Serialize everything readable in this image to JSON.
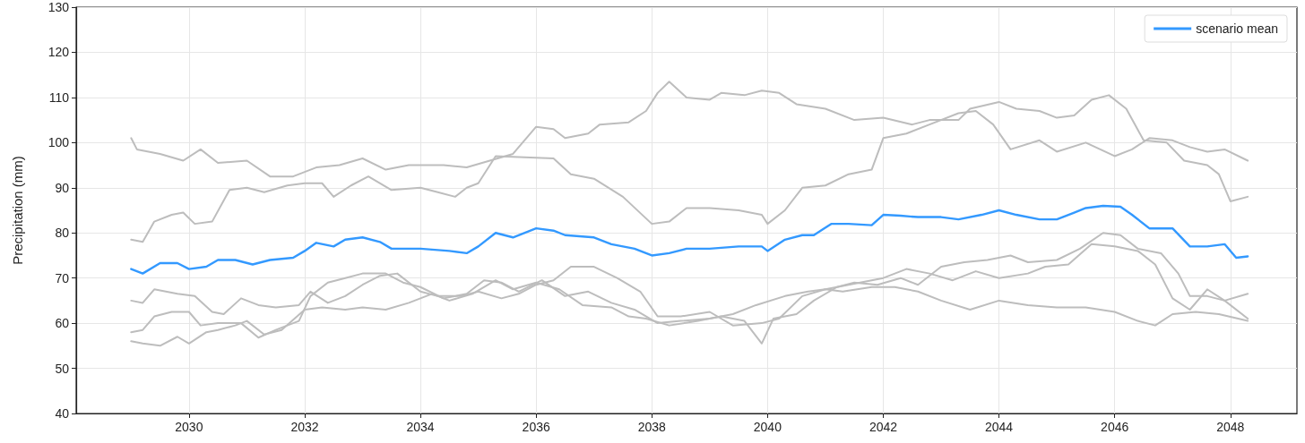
{
  "chart_data": {
    "type": "line",
    "ylabel": "Precipitation (mm)",
    "xlim": [
      2028.05,
      2049.15
    ],
    "xticks": [
      2030,
      2032,
      2034,
      2036,
      2038,
      2040,
      2042,
      2044,
      2046,
      2048
    ],
    "ylim": [
      40,
      130
    ],
    "yticks": [
      40,
      50,
      60,
      70,
      80,
      90,
      100,
      110,
      120,
      130
    ],
    "grid": true,
    "legend": "top right",
    "marker": "none",
    "line_style": "solid",
    "series": [
      {
        "color": "#bdbdbd",
        "x": [
          2029,
          2029.1,
          2029.5,
          2029.9,
          2030.2,
          2030.5,
          2031,
          2031.4,
          2031.8,
          2032.2,
          2032.6,
          2033,
          2033.4,
          2033.8,
          2034.4,
          2034.8,
          2035.2,
          2035.6,
          2036,
          2036.3,
          2036.5,
          2036.9,
          2037.1,
          2037.6,
          2037.9,
          2038.1,
          2038.3,
          2038.6,
          2039,
          2039.2,
          2039.6,
          2039.9,
          2040.2,
          2040.5,
          2041,
          2041.5,
          2042,
          2042.5,
          2042.8,
          2043.3,
          2043.5,
          2044,
          2044.3,
          2044.7,
          2045,
          2045.3,
          2045.6,
          2045.9,
          2046.2,
          2046.5,
          2046.9,
          2047.2,
          2047.6,
          2047.8,
          2048,
          2048.3
        ],
        "values": [
          101,
          98.5,
          97.5,
          96,
          98.5,
          95.5,
          96,
          92.5,
          92.5,
          94.5,
          95,
          96.5,
          94,
          95,
          95,
          94.5,
          96,
          97.5,
          103.5,
          103,
          101,
          102,
          104,
          104.5,
          107,
          111,
          113.5,
          110,
          109.5,
          111,
          110.5,
          111.5,
          111,
          108.5,
          107.5,
          105,
          105.5,
          104,
          105,
          105,
          107.5,
          109,
          107.5,
          107,
          105.5,
          106,
          109.5,
          110.5,
          107.5,
          100.5,
          100,
          96,
          95,
          93,
          87,
          88
        ]
      },
      {
        "color": "#bdbdbd",
        "x": [
          2029,
          2029.2,
          2029.4,
          2029.7,
          2029.9,
          2030.1,
          2030.4,
          2030.7,
          2031,
          2031.3,
          2031.7,
          2032,
          2032.3,
          2032.5,
          2032.8,
          2033.1,
          2033.5,
          2034,
          2034.3,
          2034.6,
          2034.8,
          2035,
          2035.3,
          2036.3,
          2036.6,
          2037,
          2037.5,
          2038,
          2038.3,
          2038.6,
          2039,
          2039.5,
          2039.9,
          2040,
          2040.3,
          2040.6,
          2041,
          2041.4,
          2041.8,
          2042,
          2042.4,
          2042.8,
          2043.3,
          2043.6,
          2043.9,
          2044.2,
          2044.7,
          2045,
          2045.5,
          2046,
          2046.3,
          2046.6,
          2047,
          2047.3,
          2047.6,
          2047.9,
          2048.3
        ],
        "values": [
          78.5,
          78,
          82.5,
          84,
          84.5,
          82,
          82.5,
          89.5,
          90,
          89,
          90.5,
          91,
          91,
          88,
          90.5,
          92.5,
          89.5,
          90,
          89,
          88,
          90,
          91,
          97,
          96.5,
          93,
          92,
          88,
          82,
          82.5,
          85.5,
          85.5,
          85,
          84,
          82,
          85,
          90,
          90.5,
          93,
          94,
          101,
          102,
          104,
          106.5,
          107,
          104,
          98.5,
          100.5,
          98,
          100,
          97,
          98.5,
          101,
          100.5,
          99,
          98,
          98.5,
          96
        ]
      },
      {
        "color": "#bdbdbd",
        "x": [
          2029,
          2029.2,
          2029.4,
          2029.8,
          2030.1,
          2030.4,
          2030.6,
          2030.9,
          2031.2,
          2031.5,
          2031.9,
          2032.1,
          2032.4,
          2032.7,
          2033,
          2033.3,
          2033.6,
          2034,
          2034.3,
          2034.7,
          2035,
          2035.4,
          2035.7,
          2036,
          2036.3,
          2036.6,
          2037,
          2037.4,
          2037.8,
          2038.1,
          2038.5,
          2039,
          2039.4,
          2039.9,
          2040.2,
          2040.6,
          2041,
          2041.4,
          2042,
          2042.4,
          2042.8,
          2043.2,
          2043.6,
          2044,
          2044.5,
          2044.8,
          2045.2,
          2045.6,
          2046,
          2046.4,
          2046.7,
          2047,
          2047.3,
          2047.6,
          2047.9,
          2048.3
        ],
        "values": [
          65,
          64.5,
          67.5,
          66.5,
          66,
          62.5,
          62,
          65.5,
          64,
          63.5,
          64,
          67,
          64.5,
          66,
          68.5,
          70.5,
          71,
          67,
          66,
          66,
          67,
          65.5,
          66.5,
          68.5,
          69.5,
          72.5,
          72.5,
          70,
          67,
          61.5,
          61.5,
          62.5,
          59.5,
          60,
          61,
          66,
          67.5,
          68.5,
          70,
          72,
          71,
          69.5,
          71.5,
          70,
          71,
          72.5,
          73,
          77.5,
          77,
          76,
          73,
          65.5,
          63,
          67.5,
          65,
          66.5
        ]
      },
      {
        "color": "#bdbdbd",
        "x": [
          2029,
          2029.2,
          2029.4,
          2029.7,
          2030,
          2030.2,
          2030.5,
          2030.9,
          2031.2,
          2031.5,
          2031.9,
          2032.1,
          2032.4,
          2032.7,
          2033,
          2033.4,
          2033.7,
          2034,
          2034.4,
          2034.8,
          2035.1,
          2035.4,
          2035.7,
          2036.1,
          2036.5,
          2036.9,
          2037.3,
          2037.7,
          2038.1,
          2038.5,
          2039,
          2039.4,
          2039.8,
          2040.3,
          2040.7,
          2041,
          2041.3,
          2041.8,
          2042.2,
          2042.6,
          2043,
          2043.5,
          2044,
          2044.5,
          2045,
          2045.5,
          2046,
          2046.4,
          2046.7,
          2047,
          2047.4,
          2047.8,
          2048.3
        ],
        "values": [
          58,
          58.5,
          61.5,
          62.5,
          62.5,
          59.5,
          60,
          60,
          56.8,
          58.5,
          60.5,
          66,
          69,
          70,
          71,
          71,
          69,
          68,
          65.5,
          66.5,
          69.5,
          69,
          67,
          69.5,
          66,
          67,
          64.5,
          63,
          60,
          60.5,
          61,
          62,
          64,
          66,
          67,
          67.5,
          67,
          68,
          68,
          67,
          65,
          63,
          65,
          64,
          63.5,
          63.5,
          62.5,
          60.5,
          59.5,
          62,
          62.5,
          62,
          60.5
        ]
      },
      {
        "color": "#bdbdbd",
        "x": [
          2029,
          2029.2,
          2029.5,
          2029.8,
          2030,
          2030.3,
          2030.5,
          2030.8,
          2031,
          2031.3,
          2031.6,
          2032,
          2032.3,
          2032.7,
          2033,
          2033.4,
          2033.8,
          2034.2,
          2034.5,
          2034.9,
          2035.3,
          2035.6,
          2036,
          2036.4,
          2036.8,
          2037.3,
          2037.6,
          2037.9,
          2038.3,
          2038.8,
          2039.2,
          2039.6,
          2039.9,
          2040.1,
          2040.5,
          2040.8,
          2041.2,
          2041.5,
          2041.9,
          2042.3,
          2042.6,
          2043,
          2043.4,
          2043.8,
          2044.2,
          2044.5,
          2045,
          2045.4,
          2045.8,
          2046.1,
          2046.4,
          2046.8,
          2047.1,
          2047.3,
          2047.6,
          2047.9,
          2048.3
        ],
        "values": [
          56,
          55.5,
          55,
          57,
          55.5,
          58,
          58.5,
          59.5,
          60.5,
          57.5,
          58.5,
          63,
          63.5,
          63,
          63.5,
          63,
          64.5,
          66.5,
          65,
          66.5,
          69.5,
          67.5,
          69,
          67.5,
          64,
          63.5,
          61.5,
          61,
          59.5,
          60.5,
          61.5,
          60.5,
          55.5,
          61,
          62,
          65,
          68,
          69,
          68.5,
          70,
          68.5,
          72.5,
          73.5,
          74,
          75,
          73.5,
          74,
          76.5,
          80,
          79.5,
          76.5,
          75.5,
          71,
          66,
          66,
          65,
          61
        ]
      },
      {
        "name": "scenario mean",
        "color": "#3399ff",
        "x": [
          2029,
          2029.2,
          2029.5,
          2029.8,
          2030,
          2030.3,
          2030.5,
          2030.8,
          2031.1,
          2031.4,
          2031.8,
          2032,
          2032.2,
          2032.5,
          2032.7,
          2033,
          2033.3,
          2033.5,
          2034,
          2034.5,
          2034.8,
          2035,
          2035.3,
          2035.6,
          2036,
          2036.3,
          2036.5,
          2037,
          2037.3,
          2037.7,
          2038,
          2038.3,
          2038.6,
          2039,
          2039.5,
          2039.9,
          2040,
          2040.3,
          2040.6,
          2040.8,
          2041.1,
          2041.4,
          2041.8,
          2042,
          2042.3,
          2042.6,
          2043,
          2043.3,
          2043.7,
          2044,
          2044.3,
          2044.7,
          2045,
          2045.3,
          2045.5,
          2045.8,
          2046.1,
          2046.3,
          2046.6,
          2047,
          2047.3,
          2047.6,
          2047.9,
          2048.1,
          2048.3
        ],
        "values": [
          72,
          71,
          73.3,
          73.3,
          72,
          72.5,
          74,
          74,
          73,
          74,
          74.5,
          76,
          77.8,
          77,
          78.5,
          79,
          78,
          76.5,
          76.5,
          76,
          75.5,
          77,
          80,
          79,
          81,
          80.5,
          79.5,
          79,
          77.5,
          76.5,
          75,
          75.5,
          76.5,
          76.5,
          77,
          77,
          76,
          78.5,
          79.5,
          79.5,
          82,
          82,
          81.7,
          84,
          83.8,
          83.5,
          83.5,
          83,
          84,
          85,
          84,
          83,
          83,
          84.5,
          85.5,
          86,
          85.8,
          84,
          81,
          81,
          77,
          77,
          77.5,
          74.5,
          74.8
        ]
      }
    ]
  }
}
